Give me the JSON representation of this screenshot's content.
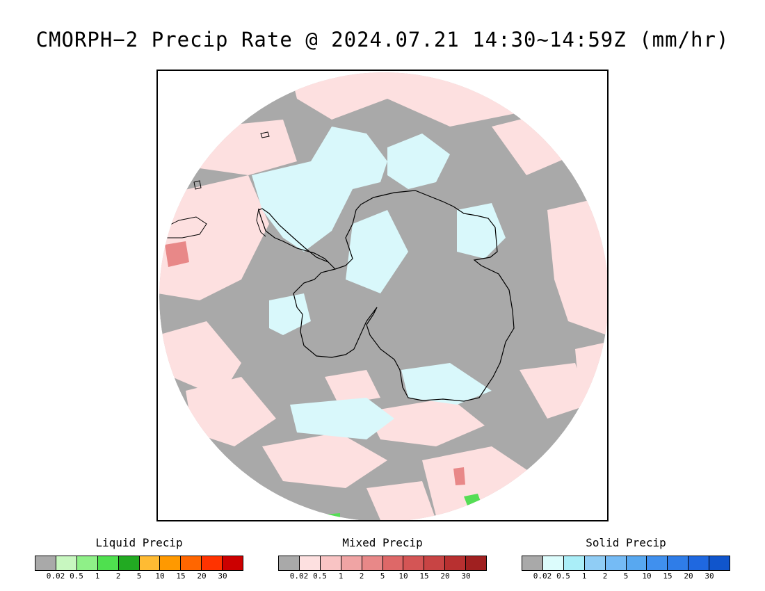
{
  "title": "CMORPH−2 Precip Rate @ 2024.07.21 14:30~14:59Z (mm/hr)",
  "map": {
    "projection": "south polar stereographic",
    "colors": {
      "no_precip": "#a9a9a9",
      "mixed_light": "#fde0e0",
      "solid_light": "#d9f8fb",
      "mixed_medium": "#e8888a",
      "liquid_light": "#55dd55",
      "coastline": "#000000"
    }
  },
  "legends": [
    {
      "title": "Liquid Precip",
      "colors": [
        "#a9a9a9",
        "#c8f7c0",
        "#8ff088",
        "#4fe04f",
        "#22aa22",
        "#ffbb33",
        "#ff9900",
        "#ff6600",
        "#ff3300",
        "#cc0000"
      ],
      "ticks": [
        "0.02",
        "0.5",
        "1",
        "2",
        "5",
        "10",
        "15",
        "20",
        "30"
      ]
    },
    {
      "title": "Mixed Precip",
      "colors": [
        "#a9a9a9",
        "#fde0e0",
        "#f9c4c4",
        "#f0a4a4",
        "#e88888",
        "#de6868",
        "#d45555",
        "#c84444",
        "#b83030",
        "#a02020"
      ],
      "ticks": [
        "0.02",
        "0.5",
        "1",
        "2",
        "5",
        "10",
        "15",
        "20",
        "30"
      ]
    },
    {
      "title": "Solid Precip",
      "colors": [
        "#a9a9a9",
        "#dcfcfc",
        "#aaeef8",
        "#90cdf5",
        "#75bbf5",
        "#58a8f0",
        "#4090ee",
        "#2f7de8",
        "#1f68e0",
        "#1055cc"
      ],
      "ticks": [
        "0.02",
        "0.5",
        "1",
        "2",
        "5",
        "10",
        "15",
        "20",
        "30"
      ]
    }
  ]
}
